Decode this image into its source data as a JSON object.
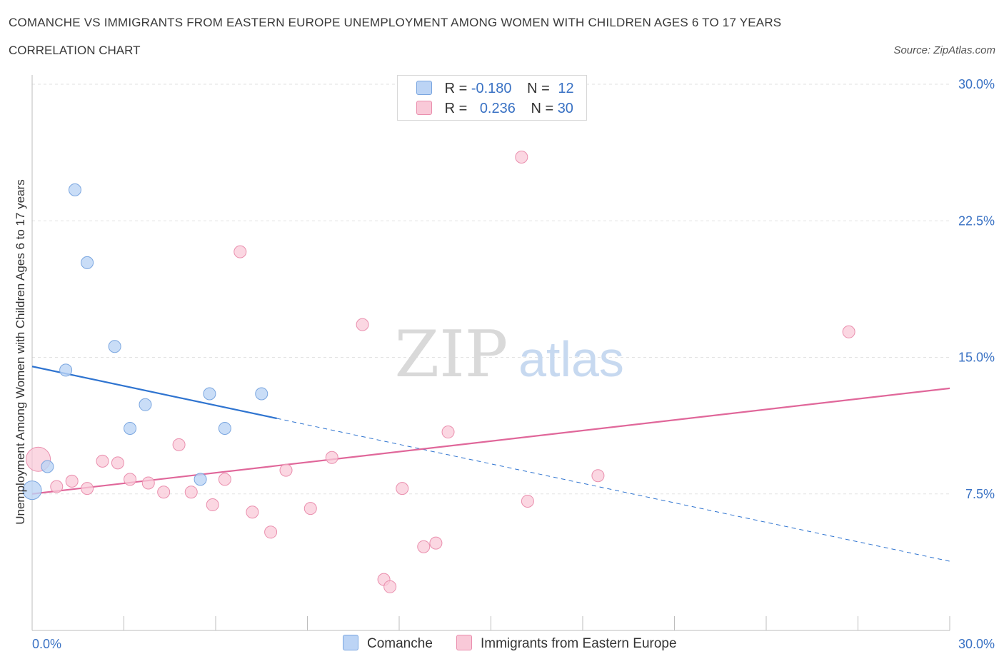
{
  "header": {
    "title": "COMANCHE VS IMMIGRANTS FROM EASTERN EUROPE UNEMPLOYMENT AMONG WOMEN WITH CHILDREN AGES 6 TO 17 YEARS",
    "subtitle": "CORRELATION CHART",
    "source": "Source: ZipAtlas.com"
  },
  "watermark": {
    "zip": "ZIP",
    "atlas": "atlas"
  },
  "legend": {
    "rows": [
      {
        "r_label": "R =",
        "r_value": "-0.180",
        "n_label": "N =",
        "n_value": "12"
      },
      {
        "r_label": "R =",
        "r_value": "0.236",
        "n_label": "N =",
        "n_value": "30"
      }
    ]
  },
  "bottom_legend": {
    "comanche": "Comanche",
    "immigrants": "Immigrants from Eastern Europe"
  },
  "colors": {
    "comanche_fill": "#bcd4f5",
    "comanche_stroke": "#7aa6e0",
    "comanche_line": "#2f74d0",
    "imm_fill": "#f9c9d8",
    "imm_stroke": "#ea8fae",
    "imm_line": "#e0679a",
    "axis_label": "#3a72c4",
    "grid": "#e2e2e2"
  },
  "chart_data": {
    "type": "scatter",
    "title": "COMANCHE VS IMMIGRANTS FROM EASTERN EUROPE UNEMPLOYMENT AMONG WOMEN WITH CHILDREN AGES 6 TO 17 YEARS",
    "xlabel": "",
    "ylabel": "Unemployment Among Women with Children Ages 6 to 17 years",
    "xlim": [
      0,
      30
    ],
    "ylim": [
      0,
      30
    ],
    "x_tick_labels": [
      "0.0%",
      "30.0%"
    ],
    "y_ticks": [
      7.5,
      15.0,
      22.5,
      30.0
    ],
    "y_tick_labels": [
      "7.5%",
      "15.0%",
      "22.5%",
      "30.0%"
    ],
    "grid": "horizontal dashed",
    "legend_position": "top-center",
    "series": [
      {
        "name": "Comanche",
        "r": -0.18,
        "n": 12,
        "points": [
          {
            "x": 0.0,
            "y": 7.7,
            "size": "large"
          },
          {
            "x": 0.5,
            "y": 9.0
          },
          {
            "x": 1.1,
            "y": 14.3
          },
          {
            "x": 1.4,
            "y": 24.2
          },
          {
            "x": 1.8,
            "y": 20.2
          },
          {
            "x": 2.7,
            "y": 15.6
          },
          {
            "x": 3.2,
            "y": 11.1
          },
          {
            "x": 3.7,
            "y": 12.4
          },
          {
            "x": 5.5,
            "y": 8.3
          },
          {
            "x": 5.8,
            "y": 13.0
          },
          {
            "x": 6.3,
            "y": 11.1
          },
          {
            "x": 7.5,
            "y": 13.0
          }
        ],
        "trend": {
          "x0": 0,
          "y0": 14.5,
          "x1": 30,
          "y1": 3.8,
          "solid_until_x": 8.0
        }
      },
      {
        "name": "Immigrants from Eastern Europe",
        "r": 0.236,
        "n": 30,
        "points": [
          {
            "x": 0.2,
            "y": 9.4,
            "size": "large"
          },
          {
            "x": 0.8,
            "y": 7.9
          },
          {
            "x": 1.3,
            "y": 8.2
          },
          {
            "x": 1.8,
            "y": 7.8
          },
          {
            "x": 2.3,
            "y": 9.3
          },
          {
            "x": 2.8,
            "y": 9.2
          },
          {
            "x": 3.2,
            "y": 8.3
          },
          {
            "x": 3.8,
            "y": 8.1
          },
          {
            "x": 4.3,
            "y": 7.6
          },
          {
            "x": 4.8,
            "y": 10.2
          },
          {
            "x": 5.2,
            "y": 7.6
          },
          {
            "x": 5.9,
            "y": 6.9
          },
          {
            "x": 6.3,
            "y": 8.3
          },
          {
            "x": 6.8,
            "y": 20.8
          },
          {
            "x": 7.2,
            "y": 6.5
          },
          {
            "x": 7.8,
            "y": 5.4
          },
          {
            "x": 8.3,
            "y": 8.8
          },
          {
            "x": 9.1,
            "y": 6.7
          },
          {
            "x": 9.8,
            "y": 9.5
          },
          {
            "x": 10.8,
            "y": 16.8
          },
          {
            "x": 11.5,
            "y": 2.8
          },
          {
            "x": 11.7,
            "y": 2.4
          },
          {
            "x": 12.1,
            "y": 7.8
          },
          {
            "x": 12.8,
            "y": 4.6
          },
          {
            "x": 13.2,
            "y": 4.8
          },
          {
            "x": 13.6,
            "y": 10.9
          },
          {
            "x": 16.0,
            "y": 26.0
          },
          {
            "x": 16.2,
            "y": 7.1
          },
          {
            "x": 18.5,
            "y": 8.5
          },
          {
            "x": 26.7,
            "y": 16.4
          }
        ],
        "trend": {
          "x0": 0,
          "y0": 7.5,
          "x1": 30,
          "y1": 13.3
        }
      }
    ]
  }
}
